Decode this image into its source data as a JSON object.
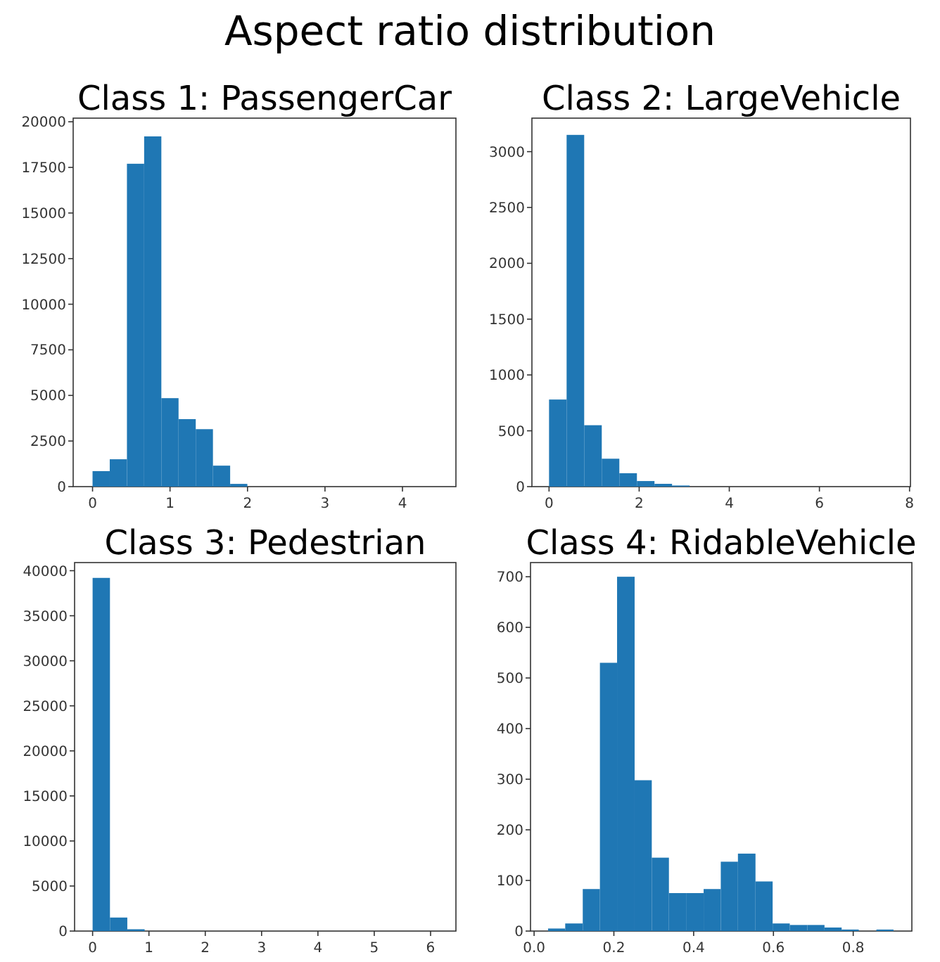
{
  "chart_data": [
    {
      "type": "other",
      "title": "Aspect ratio distribution"
    },
    {
      "type": "histogram",
      "title": "Class 1: PassengerCar",
      "color": "#1f77b4",
      "bins": [
        0,
        0.222,
        0.444,
        0.666,
        0.888,
        1.11,
        1.332,
        1.554,
        1.776,
        1.998,
        2.22,
        2.442,
        2.664,
        2.886,
        3.108,
        3.33,
        3.552,
        3.774,
        3.996,
        4.218,
        4.44
      ],
      "values": [
        850,
        1500,
        17700,
        19200,
        4850,
        3700,
        3150,
        1150,
        150,
        0,
        0,
        0,
        0,
        0,
        0,
        0,
        0,
        0,
        0,
        0
      ],
      "xlim": [
        -0.25,
        4.69
      ],
      "xticks": [
        0,
        1,
        2,
        3,
        4
      ],
      "ylim": [
        0,
        20200
      ],
      "yticks": [
        0,
        2500,
        5000,
        7500,
        10000,
        12500,
        15000,
        17500,
        20000
      ]
    },
    {
      "type": "histogram",
      "title": "Class 2: LargeVehicle",
      "color": "#1f77b4",
      "bins": [
        0,
        0.39,
        0.78,
        1.17,
        1.56,
        1.95,
        2.34,
        2.73,
        3.12,
        3.51,
        3.9,
        4.29,
        4.68,
        5.07,
        5.46,
        5.85,
        6.24,
        6.63,
        7.02,
        7.41,
        7.8
      ],
      "values": [
        780,
        3150,
        550,
        250,
        120,
        50,
        25,
        10,
        0,
        0,
        0,
        0,
        0,
        0,
        0,
        0,
        0,
        0,
        0,
        0
      ],
      "xlim": [
        -0.38,
        8.02
      ],
      "xticks": [
        0,
        2,
        4,
        6,
        8
      ],
      "ylim": [
        0,
        3300
      ],
      "yticks": [
        0,
        500,
        1000,
        1500,
        2000,
        2500,
        3000
      ]
    },
    {
      "type": "histogram",
      "title": "Class 3: Pedestrian",
      "color": "#1f77b4",
      "bins": [
        0,
        0.308,
        0.616,
        0.924,
        1.232,
        1.54,
        1.848,
        2.156,
        2.464,
        2.772,
        3.08,
        3.388,
        3.696,
        4.004,
        4.312,
        4.62,
        4.928,
        5.236,
        5.544,
        5.852,
        6.16
      ],
      "values": [
        39200,
        1500,
        200,
        0,
        0,
        0,
        0,
        0,
        0,
        0,
        0,
        0,
        0,
        0,
        0,
        0,
        0,
        0,
        0,
        0
      ],
      "xlim": [
        -0.32,
        6.45
      ],
      "xticks": [
        0,
        1,
        2,
        3,
        4,
        5,
        6
      ],
      "ylim": [
        0,
        40900
      ],
      "yticks": [
        0,
        5000,
        10000,
        15000,
        20000,
        25000,
        30000,
        35000,
        40000
      ]
    },
    {
      "type": "histogram",
      "title": "Class 4: RidableVehicle",
      "color": "#1f77b4",
      "bins": [
        0.035,
        0.078,
        0.122,
        0.165,
        0.208,
        0.252,
        0.295,
        0.338,
        0.381,
        0.425,
        0.468,
        0.511,
        0.555,
        0.598,
        0.641,
        0.685,
        0.728,
        0.771,
        0.814,
        0.858,
        0.901
      ],
      "values": [
        5,
        15,
        83,
        530,
        700,
        298,
        145,
        75,
        75,
        83,
        137,
        153,
        98,
        15,
        12,
        12,
        7,
        3,
        0,
        3
      ],
      "xlim": [
        -0.009,
        0.947
      ],
      "xticks": [
        {
          "value": 0,
          "label": "0.0"
        },
        {
          "value": 0.2,
          "label": "0.2"
        },
        {
          "value": 0.4,
          "label": "0.4"
        },
        {
          "value": 0.6,
          "label": "0.6"
        },
        {
          "value": 0.8,
          "label": "0.8"
        }
      ],
      "ylim": [
        0,
        728
      ],
      "yticks": [
        0,
        100,
        200,
        300,
        400,
        500,
        600,
        700
      ]
    }
  ]
}
